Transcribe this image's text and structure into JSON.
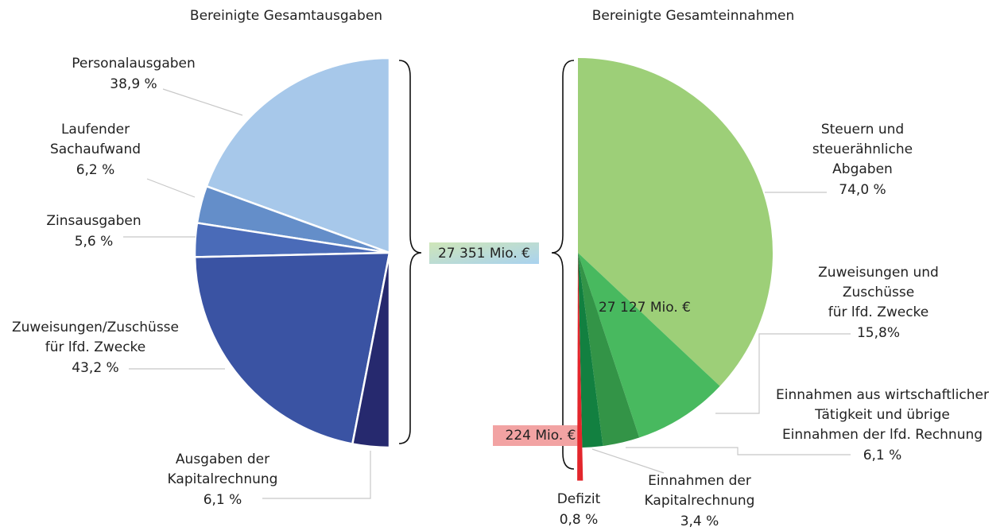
{
  "chart_data": [
    {
      "type": "half-pie",
      "title": "Bereinigte Gesamtausgaben",
      "categories": [
        [
          "Personalausgaben"
        ],
        [
          "Laufender",
          "Sachaufwand"
        ],
        [
          "Zinsausgaben"
        ],
        [
          "Zuweisungen/Zuschüsse",
          "für lfd. Zwecke"
        ],
        [
          "Ausgaben der",
          "Kapitalrechnung"
        ]
      ],
      "values": [
        38.9,
        6.2,
        5.6,
        43.2,
        6.1
      ],
      "value_labels": [
        "38,9 %",
        "6,2 %",
        "5,6 %",
        "43,2 %",
        "6,1 %"
      ],
      "colors": [
        "#a7c8ea",
        "#648ec9",
        "#4a6bb8",
        "#3a53a3",
        "#26296e"
      ],
      "side": "left",
      "annotations": [
        "27 351 Mio. €"
      ]
    },
    {
      "type": "half-pie",
      "title": "Bereinigte Gesamteinnahmen",
      "categories": [
        [
          "Steuern und",
          "steuerähnliche",
          "Abgaben"
        ],
        [
          "Zuweisungen und",
          "Zuschüsse",
          "für lfd. Zwecke"
        ],
        [
          "Einnahmen aus wirtschaftlicher",
          "Tätigkeit und übrige",
          "Einnahmen der lfd. Rechnung"
        ],
        [
          "Einnahmen der",
          "Kapitalrechnung"
        ],
        [
          "Defizit"
        ]
      ],
      "values": [
        74.0,
        15.8,
        6.1,
        3.4,
        0.8
      ],
      "value_labels": [
        "74,0 %",
        "15,8%",
        "6,1 %",
        "3,4 %",
        "0,8 %"
      ],
      "colors": [
        "#9dcf78",
        "#48b95f",
        "#339447",
        "#128040",
        "#e3262c"
      ],
      "side": "right",
      "annotations": [
        "27 127 Mio. €",
        "224 Mio. €"
      ]
    }
  ]
}
